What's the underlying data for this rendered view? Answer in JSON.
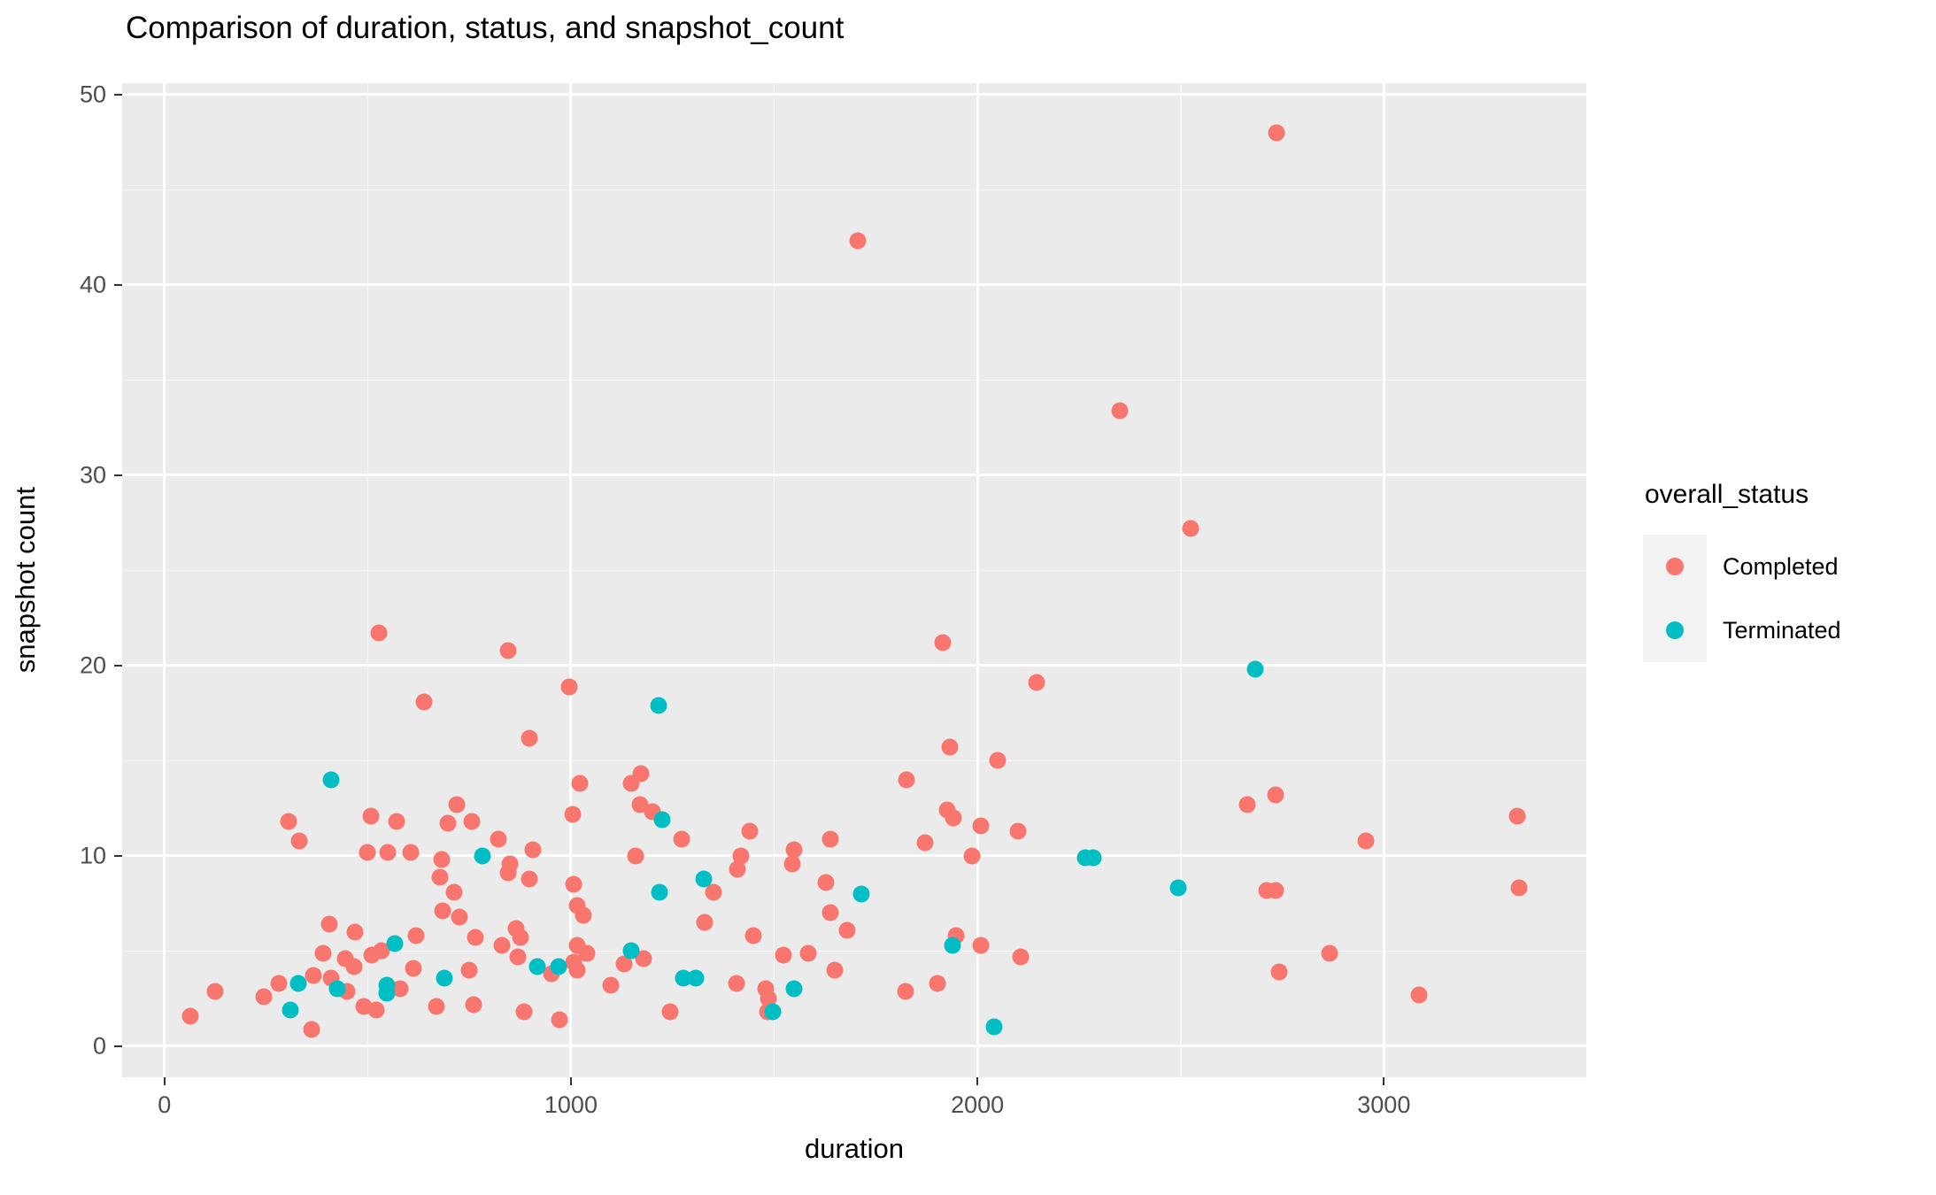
{
  "title": "Comparison of duration, status, and snapshot_count",
  "axes": {
    "x": {
      "label": "duration",
      "ticks": [
        0,
        1000,
        2000,
        3000
      ],
      "minor_ticks": [
        500,
        1500,
        2500,
        3500
      ],
      "domain": [
        -104,
        3498
      ]
    },
    "y": {
      "label": "snapshot count",
      "ticks": [
        0,
        10,
        20,
        30,
        40,
        50
      ],
      "minor_ticks": [
        5,
        15,
        25,
        35,
        45
      ],
      "domain": [
        -1.63,
        50.6
      ]
    }
  },
  "legend": {
    "title": "overall_status",
    "items": [
      {
        "label": "Completed",
        "color": "#F8766D"
      },
      {
        "label": "Terminated",
        "color": "#00BFC4"
      }
    ]
  },
  "colors": {
    "completed": "#F8766D",
    "terminated": "#00BFC4",
    "panel_background": "#EBEBEB",
    "gridline": "#FFFFFF",
    "legend_key_background": "#F2F2F2",
    "tick_label": "#4D4D4D",
    "tick_mark": "#333333"
  },
  "chart_data": {
    "type": "scatter",
    "title": "Comparison of duration, status, and snapshot_count",
    "xlabel": "duration",
    "ylabel": "snapshot count",
    "xlim": [
      -104,
      3498
    ],
    "ylim": [
      -1.63,
      50.6
    ],
    "grid": true,
    "legend_position": "right",
    "series": [
      {
        "name": "Completed",
        "color": "#F8766D",
        "points": [
          [
            2736,
            48.0
          ],
          [
            1706,
            42.3
          ],
          [
            2350,
            33.4
          ],
          [
            2524,
            27.2
          ],
          [
            528,
            21.7
          ],
          [
            1915,
            21.2
          ],
          [
            846,
            20.8
          ],
          [
            2146,
            19.1
          ],
          [
            996,
            18.9
          ],
          [
            639,
            18.1
          ],
          [
            898,
            16.2
          ],
          [
            1932,
            15.7
          ],
          [
            2050,
            15.0
          ],
          [
            1825,
            14.0
          ],
          [
            1172,
            14.3
          ],
          [
            1148,
            13.8
          ],
          [
            1022,
            13.8
          ],
          [
            1170,
            12.7
          ],
          [
            1200,
            12.3
          ],
          [
            1005,
            12.2
          ],
          [
            306,
            11.8
          ],
          [
            332,
            10.8
          ],
          [
            64,
            1.6
          ],
          [
            125,
            2.9
          ],
          [
            245,
            2.6
          ],
          [
            282,
            3.3
          ],
          [
            366,
            3.7
          ],
          [
            410,
            3.6
          ],
          [
            449,
            2.9
          ],
          [
            362,
            0.9
          ],
          [
            405,
            6.4
          ],
          [
            469,
            6.0
          ],
          [
            390,
            4.9
          ],
          [
            445,
            4.6
          ],
          [
            467,
            4.2
          ],
          [
            510,
            4.8
          ],
          [
            535,
            5.0
          ],
          [
            490,
            2.1
          ],
          [
            520,
            1.9
          ],
          [
            580,
            3.0
          ],
          [
            508,
            12.1
          ],
          [
            571,
            11.8
          ],
          [
            719,
            12.7
          ],
          [
            698,
            11.7
          ],
          [
            756,
            11.8
          ],
          [
            822,
            10.9
          ],
          [
            500,
            10.2
          ],
          [
            550,
            10.2
          ],
          [
            606,
            10.2
          ],
          [
            850,
            9.6
          ],
          [
            846,
            9.1
          ],
          [
            906,
            10.3
          ],
          [
            898,
            8.8
          ],
          [
            682,
            9.8
          ],
          [
            678,
            8.9
          ],
          [
            713,
            8.1
          ],
          [
            1007,
            8.5
          ],
          [
            1015,
            7.4
          ],
          [
            1030,
            6.9
          ],
          [
            684,
            7.1
          ],
          [
            726,
            6.8
          ],
          [
            619,
            5.8
          ],
          [
            765,
            5.7
          ],
          [
            612,
            4.1
          ],
          [
            750,
            4.0
          ],
          [
            669,
            2.1
          ],
          [
            760,
            2.2
          ],
          [
            885,
            1.8
          ],
          [
            972,
            1.4
          ],
          [
            865,
            6.2
          ],
          [
            875,
            5.7
          ],
          [
            830,
            5.3
          ],
          [
            870,
            4.7
          ],
          [
            952,
            3.8
          ],
          [
            1007,
            4.4
          ],
          [
            1015,
            4.0
          ],
          [
            1015,
            5.3
          ],
          [
            1040,
            4.9
          ],
          [
            1272,
            10.9
          ],
          [
            1160,
            10.0
          ],
          [
            1440,
            11.3
          ],
          [
            1418,
            10.0
          ],
          [
            1410,
            9.3
          ],
          [
            1350,
            8.1
          ],
          [
            1330,
            6.5
          ],
          [
            1449,
            5.8
          ],
          [
            1549,
            10.3
          ],
          [
            1545,
            9.6
          ],
          [
            1638,
            10.9
          ],
          [
            1627,
            8.6
          ],
          [
            1638,
            7.0
          ],
          [
            1680,
            6.1
          ],
          [
            1523,
            4.8
          ],
          [
            1584,
            4.9
          ],
          [
            1649,
            4.0
          ],
          [
            1407,
            3.3
          ],
          [
            1479,
            3.0
          ],
          [
            1486,
            2.5
          ],
          [
            1484,
            1.8
          ],
          [
            1245,
            1.8
          ],
          [
            1179,
            4.6
          ],
          [
            1131,
            4.3
          ],
          [
            1098,
            3.2
          ],
          [
            1926,
            12.4
          ],
          [
            1941,
            12.0
          ],
          [
            2008,
            11.6
          ],
          [
            2100,
            11.3
          ],
          [
            1871,
            10.7
          ],
          [
            1987,
            10.0
          ],
          [
            1947,
            5.8
          ],
          [
            2008,
            5.3
          ],
          [
            2106,
            4.7
          ],
          [
            1823,
            2.9
          ],
          [
            1902,
            3.3
          ],
          [
            2664,
            12.7
          ],
          [
            2734,
            13.2
          ],
          [
            2955,
            10.8
          ],
          [
            2712,
            8.2
          ],
          [
            2734,
            8.2
          ],
          [
            2866,
            4.9
          ],
          [
            2742,
            3.9
          ],
          [
            3329,
            12.1
          ],
          [
            3333,
            8.3
          ],
          [
            3087,
            2.7
          ]
        ]
      },
      {
        "name": "Terminated",
        "color": "#00BFC4",
        "points": [
          [
            410,
            14.0
          ],
          [
            1216,
            17.9
          ],
          [
            2684,
            19.8
          ],
          [
            1225,
            11.9
          ],
          [
            330,
            3.3
          ],
          [
            425,
            3.0
          ],
          [
            310,
            1.9
          ],
          [
            548,
            3.2
          ],
          [
            548,
            2.8
          ],
          [
            782,
            10.0
          ],
          [
            567,
            5.4
          ],
          [
            689,
            3.6
          ],
          [
            918,
            4.2
          ],
          [
            970,
            4.2
          ],
          [
            1327,
            8.8
          ],
          [
            1218,
            8.1
          ],
          [
            1148,
            5.0
          ],
          [
            1277,
            3.6
          ],
          [
            1307,
            3.6
          ],
          [
            1549,
            3.0
          ],
          [
            1497,
            1.8
          ],
          [
            1715,
            8.0
          ],
          [
            1938,
            5.3
          ],
          [
            2041,
            1.0
          ],
          [
            2265,
            9.9
          ],
          [
            2285,
            9.9
          ],
          [
            2494,
            8.3
          ]
        ]
      }
    ]
  }
}
